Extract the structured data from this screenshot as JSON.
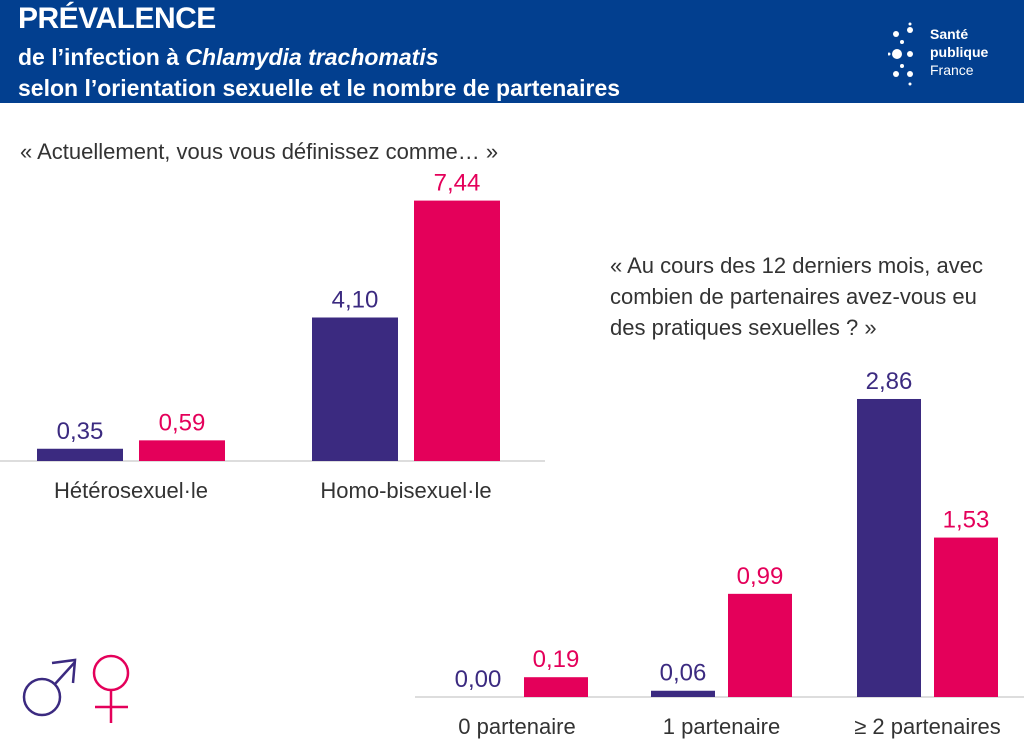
{
  "header": {
    "title": "PRÉVALENCE",
    "subtitle_prefix": "de l’infection à ",
    "subtitle_italic": "Chlamydia trachomatis",
    "subtitle2": "selon l’orientation sexuelle et le nombre de partenaires"
  },
  "logo": {
    "line1": "Santé",
    "line2": "publique",
    "line3": "France"
  },
  "colors": {
    "header": "#023f8f",
    "male": "#3b2a80",
    "female": "#e4005a"
  },
  "legend": {
    "male_icon": "male-symbol-icon",
    "female_icon": "female-symbol-icon"
  },
  "chart_data": [
    {
      "type": "bar",
      "title": "« Actuellement, vous vous définissez comme… »",
      "categories": [
        "Hétérosexuel·le",
        "Homo-bisexuel·le"
      ],
      "series": [
        {
          "values": [
            0.35,
            4.1
          ],
          "labels": [
            "0,35",
            "4,10"
          ]
        },
        {
          "values": [
            0.59,
            7.44
          ],
          "labels": [
            "0,59",
            "7,44"
          ]
        }
      ]
    },
    {
      "type": "bar",
      "title": "« Au cours des 12 derniers mois, avec combien de partenaires avez-vous eu des pratiques sexuelles ? »",
      "title_lines": [
        "« Au cours des 12 derniers mois, avec",
        "combien de partenaires avez-vous eu",
        "des pratiques sexuelles ? »"
      ],
      "categories": [
        "0 partenaire",
        "1 partenaire",
        "≥ 2 partenaires"
      ],
      "series": [
        {
          "values": [
            0.0,
            0.06,
            2.86
          ],
          "labels": [
            "0,00",
            "0,06",
            "2,86"
          ]
        },
        {
          "values": [
            0.19,
            0.99,
            1.53
          ],
          "labels": [
            "0,19",
            "0,99",
            "1,53"
          ]
        }
      ]
    }
  ]
}
